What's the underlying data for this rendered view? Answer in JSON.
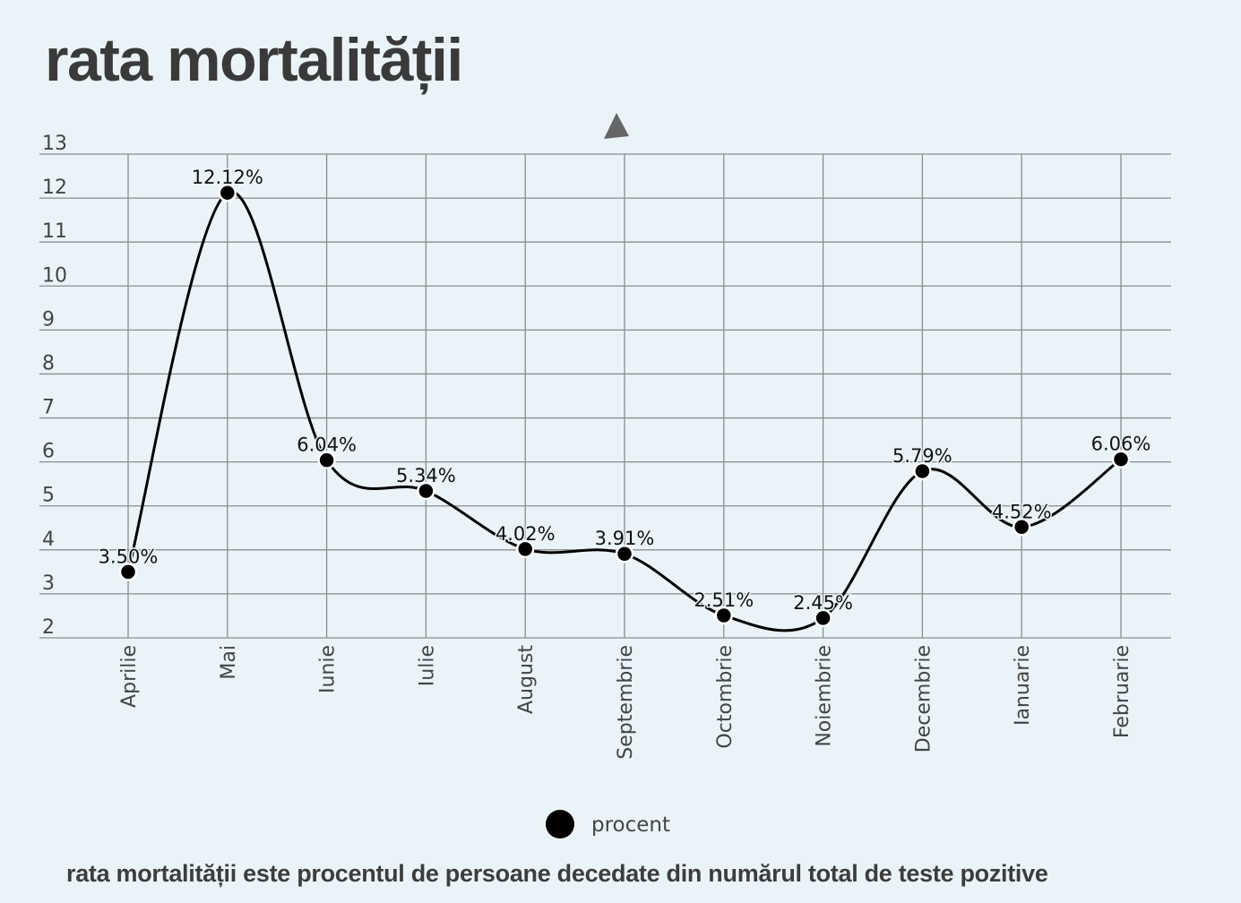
{
  "title": "rata mortalității",
  "footnote": "rata mortalității este procentul de persoane decedate din numărul total de teste pozitive",
  "chart_data": {
    "type": "line",
    "title": "rata mortalității",
    "xlabel": "",
    "ylabel": "",
    "categories": [
      "Aprilie",
      "Mai",
      "Iunie",
      "Iulie",
      "August",
      "Septembrie",
      "Octombrie",
      "Noiembrie",
      "Decembrie",
      "Ianuarie",
      "Februarie"
    ],
    "series": [
      {
        "name": "procent",
        "values": [
          3.5,
          12.12,
          6.04,
          5.34,
          4.02,
          3.91,
          2.51,
          2.45,
          5.79,
          4.52,
          6.06
        ],
        "labels": [
          "3.50%",
          "12.12%",
          "6.04%",
          "5.34%",
          "4.02%",
          "3.91%",
          "2.51%",
          "2.45%",
          "5.79%",
          "4.52%",
          "6.06%"
        ],
        "color": "#000000"
      }
    ],
    "ylim": [
      2,
      13
    ],
    "yticks": [
      "2",
      "3",
      "4",
      "5",
      "6",
      "7",
      "8",
      "9",
      "10",
      "11",
      "12",
      "13"
    ],
    "grid": true,
    "smooth": true,
    "legend": "bottom-center",
    "colors": {
      "background": "#eaf4f8",
      "grid": "#8c8c8c",
      "line": "#000000",
      "marker_stroke": "#ffffff"
    }
  },
  "legend": {
    "label": "procent"
  }
}
